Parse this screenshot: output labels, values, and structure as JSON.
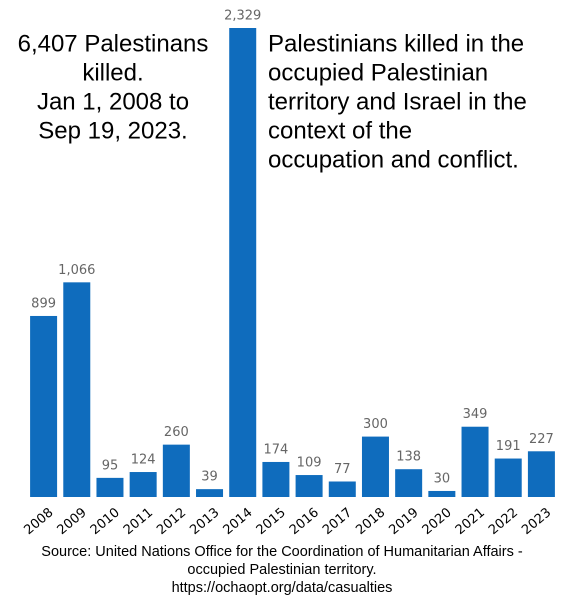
{
  "chart_data": {
    "type": "bar",
    "annotation": [
      "6,407 Palestinans",
      "killed.",
      "Jan 1, 2008 to",
      "Sep 19, 2023."
    ],
    "title": [
      "Palestinians killed in the",
      "occupied Palestinian",
      "territory and Israel in the",
      "context of the",
      "occupation and conflict."
    ],
    "source": [
      "Source: United Nations Office for the Coordination of Humanitarian Affairs -",
      "occupied Palestinian territory.",
      "https://ochaopt.org/data/casualties"
    ],
    "categories": [
      "2008",
      "2009",
      "2010",
      "2011",
      "2012",
      "2013",
      "2014",
      "2015",
      "2016",
      "2017",
      "2018",
      "2019",
      "2020",
      "2021",
      "2022",
      "2023"
    ],
    "values": [
      899,
      1066,
      95,
      124,
      260,
      39,
      2329,
      174,
      109,
      77,
      300,
      138,
      30,
      349,
      191,
      227
    ],
    "value_labels": [
      "899",
      "1,066",
      "95",
      "124",
      "260",
      "39",
      "2,329",
      "174",
      "109",
      "77",
      "300",
      "138",
      "30",
      "349",
      "191",
      "227"
    ],
    "color": "#0f6cbd"
  }
}
